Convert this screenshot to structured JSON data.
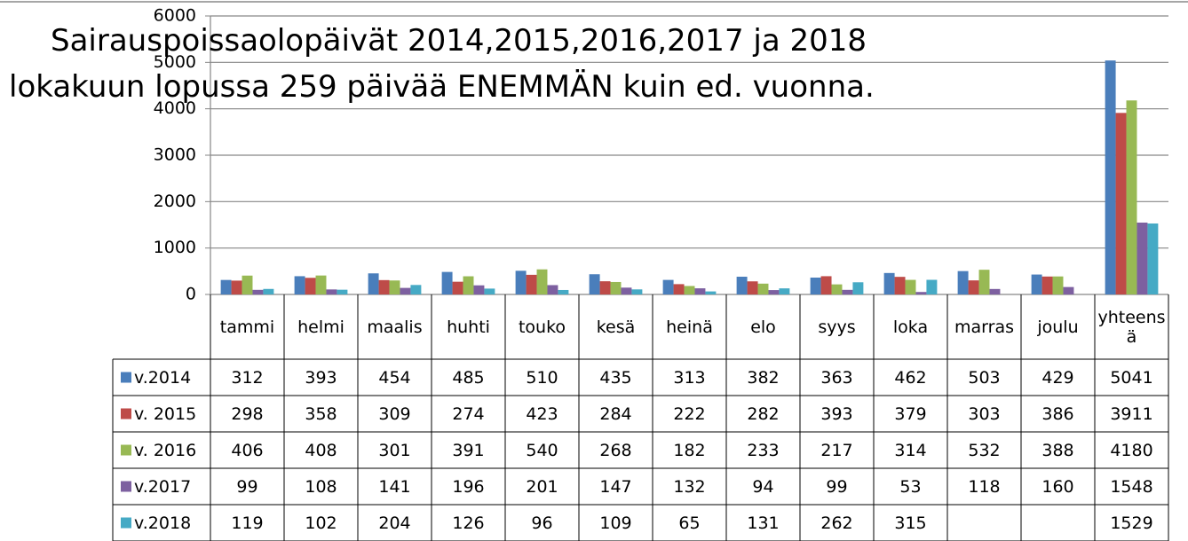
{
  "chart_data": {
    "type": "bar",
    "title": "Sairauspoissaolopäivät 2014,2015,2016,2017 ja 2018",
    "subtitle": "lokakuun lopussa 259 päivää ENEMMÄN kuin ed. vuonna.",
    "categories": [
      "tammi",
      "helmi",
      "maalis",
      "huhti",
      "touko",
      "kesä",
      "heinä",
      "elo",
      "syys",
      "loka",
      "marras",
      "joulu",
      "yhteensä"
    ],
    "series": [
      {
        "name": "v.2014",
        "color": "#4a7ebb",
        "values": [
          312,
          393,
          454,
          485,
          510,
          435,
          313,
          382,
          363,
          462,
          503,
          429,
          5041
        ]
      },
      {
        "name": "v. 2015",
        "color": "#be4b48",
        "values": [
          298,
          358,
          309,
          274,
          423,
          284,
          222,
          282,
          393,
          379,
          303,
          386,
          3911
        ]
      },
      {
        "name": "v. 2016",
        "color": "#98b954",
        "values": [
          406,
          408,
          301,
          391,
          540,
          268,
          182,
          233,
          217,
          314,
          532,
          388,
          4180
        ]
      },
      {
        "name": "v.2017",
        "color": "#7d60a0",
        "values": [
          99,
          108,
          141,
          196,
          201,
          147,
          132,
          94,
          99,
          53,
          118,
          160,
          1548
        ]
      },
      {
        "name": "v.2018",
        "color": "#46aac5",
        "values": [
          119,
          102,
          204,
          126,
          96,
          109,
          65,
          131,
          262,
          315,
          null,
          null,
          1529
        ]
      }
    ],
    "ylim": [
      0,
      6000
    ],
    "yticks": [
      0,
      1000,
      2000,
      3000,
      4000,
      5000,
      6000
    ],
    "grid": true
  }
}
